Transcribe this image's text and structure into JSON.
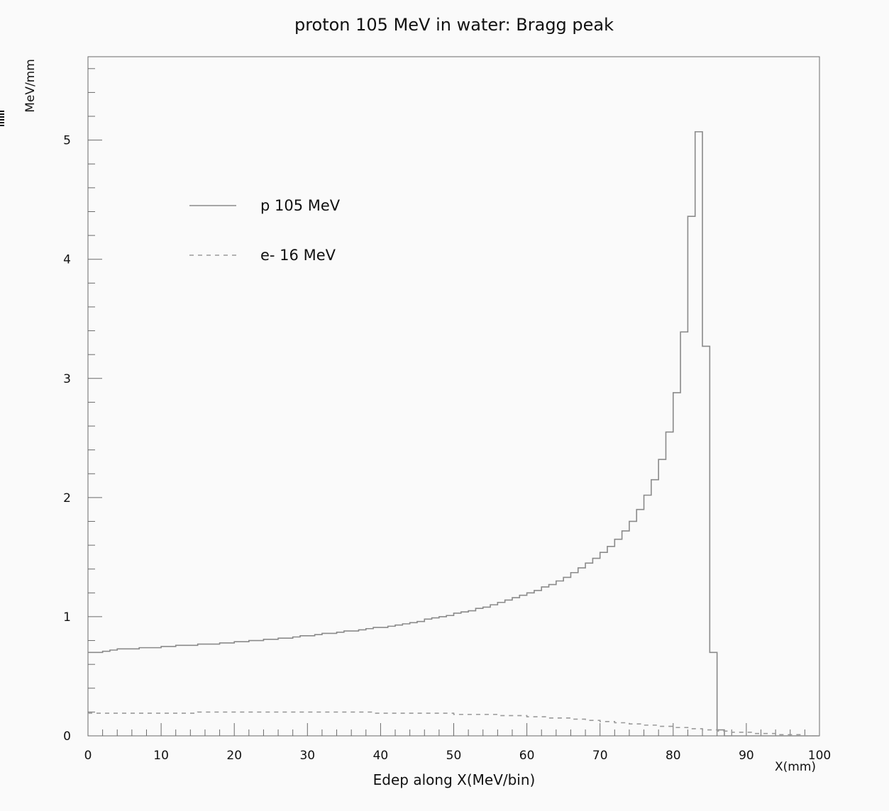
{
  "chart_data": {
    "type": "line",
    "title": "proton 105 MeV in water: Bragg peak",
    "xlabel": "Edep along X(MeV/bin)",
    "xunit_label": "X(mm)",
    "ylabel": "MeV/mm",
    "xlim": [
      0,
      100
    ],
    "ylim": [
      0,
      5.7
    ],
    "x_ticks": [
      "0",
      "10",
      "20",
      "30",
      "40",
      "50",
      "60",
      "70",
      "80",
      "90",
      "100"
    ],
    "y_ticks": [
      "0",
      "1",
      "2",
      "3",
      "4",
      "5"
    ],
    "grid": false,
    "legend_position": "upper-left",
    "bin_width": 1,
    "series": [
      {
        "name": "p 105 MeV",
        "style": "solid",
        "color": "#8a8a8a",
        "values": [
          0.7,
          0.7,
          0.71,
          0.72,
          0.73,
          0.73,
          0.73,
          0.74,
          0.74,
          0.74,
          0.75,
          0.75,
          0.76,
          0.76,
          0.76,
          0.77,
          0.77,
          0.77,
          0.78,
          0.78,
          0.79,
          0.79,
          0.8,
          0.8,
          0.81,
          0.81,
          0.82,
          0.82,
          0.83,
          0.84,
          0.84,
          0.85,
          0.86,
          0.86,
          0.87,
          0.88,
          0.88,
          0.89,
          0.9,
          0.91,
          0.91,
          0.92,
          0.93,
          0.94,
          0.95,
          0.96,
          0.98,
          0.99,
          1.0,
          1.01,
          1.03,
          1.04,
          1.05,
          1.07,
          1.08,
          1.1,
          1.12,
          1.14,
          1.16,
          1.18,
          1.2,
          1.22,
          1.25,
          1.27,
          1.3,
          1.33,
          1.37,
          1.41,
          1.45,
          1.49,
          1.54,
          1.59,
          1.65,
          1.72,
          1.8,
          1.9,
          2.02,
          2.15,
          2.32,
          2.55,
          2.88,
          3.39,
          4.36,
          5.07,
          3.27,
          0.7,
          0.05,
          0.0,
          0.0,
          0.0,
          0.0,
          0.0,
          0.0,
          0.0,
          0.0,
          0.0,
          0.0,
          0.0,
          0.0,
          0.0
        ]
      },
      {
        "name": "e- 16 MeV",
        "style": "dashed",
        "color": "#9a9a9a",
        "values": [
          0.19,
          0.19,
          0.19,
          0.19,
          0.19,
          0.19,
          0.19,
          0.19,
          0.19,
          0.19,
          0.19,
          0.19,
          0.19,
          0.19,
          0.19,
          0.2,
          0.2,
          0.2,
          0.2,
          0.2,
          0.2,
          0.2,
          0.2,
          0.2,
          0.2,
          0.2,
          0.2,
          0.2,
          0.2,
          0.2,
          0.2,
          0.2,
          0.2,
          0.2,
          0.2,
          0.2,
          0.2,
          0.2,
          0.2,
          0.19,
          0.19,
          0.19,
          0.19,
          0.19,
          0.19,
          0.19,
          0.19,
          0.19,
          0.19,
          0.19,
          0.18,
          0.18,
          0.18,
          0.18,
          0.18,
          0.18,
          0.17,
          0.17,
          0.17,
          0.17,
          0.16,
          0.16,
          0.16,
          0.15,
          0.15,
          0.15,
          0.14,
          0.14,
          0.13,
          0.13,
          0.12,
          0.12,
          0.11,
          0.11,
          0.1,
          0.1,
          0.09,
          0.09,
          0.08,
          0.08,
          0.07,
          0.07,
          0.06,
          0.06,
          0.05,
          0.05,
          0.04,
          0.04,
          0.03,
          0.03,
          0.03,
          0.02,
          0.02,
          0.02,
          0.01,
          0.01,
          0.01,
          0.01,
          0.0,
          0.0
        ]
      }
    ]
  }
}
